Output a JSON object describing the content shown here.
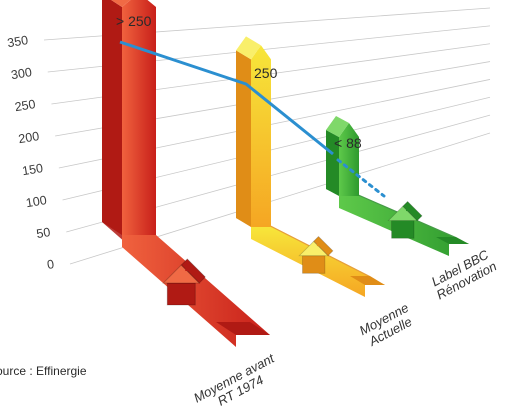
{
  "chart_data": {
    "type": "bar",
    "categories": [
      [
        "Moyenne avant",
        "RT 1974"
      ],
      [
        "Moyenne",
        "Actuelle"
      ],
      [
        "Label BBC",
        "Rénovation"
      ]
    ],
    "values": [
      340,
      250,
      88
    ],
    "data_labels": [
      "> 250",
      "250",
      "< 88"
    ],
    "y_ticks": [
      0,
      50,
      100,
      150,
      200,
      250,
      300,
      350
    ],
    "ylim": [
      0,
      350
    ],
    "grid": true,
    "colors": {
      "bar_1": "#e8392b",
      "bar_2": "#f2c21f",
      "bar_3": "#3cae3a",
      "trend_line": "#2b8fd0"
    },
    "icons": [
      "house-icon",
      "house-icon",
      "house-icon"
    ]
  },
  "source": "Source : Effinergie"
}
